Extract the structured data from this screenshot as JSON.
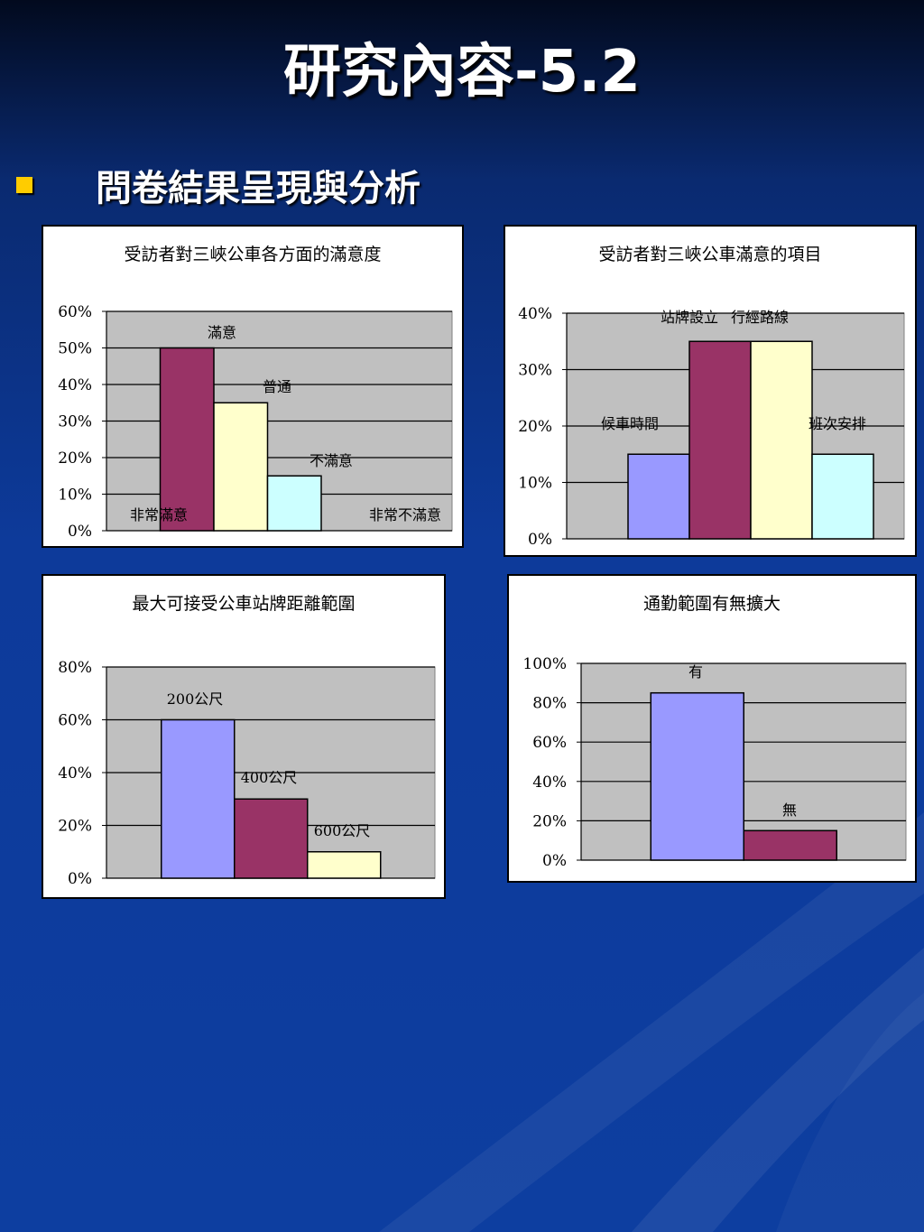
{
  "slide": {
    "title": "研究內容-5.2",
    "bullet": "問卷結果呈現與分析"
  },
  "colors": {
    "bar_purple": "#9999ff",
    "bar_maroon": "#993366",
    "bar_cream": "#ffffcc",
    "bar_cyan": "#ccffff",
    "plot_bg": "#c0c0c0",
    "bullet": "#ffcc00"
  },
  "chart_data": [
    {
      "type": "bar",
      "title": "受訪者對三峽公車各方面的滿意度",
      "categories": [
        "非常滿意",
        "滿意",
        "普通",
        "不滿意",
        "非常不滿意"
      ],
      "values": [
        0,
        50,
        35,
        15,
        0
      ],
      "colors": [
        "#9999ff",
        "#993366",
        "#ffffcc",
        "#ccffff",
        "#9999ff"
      ],
      "unit": "%",
      "ylim": [
        0,
        60
      ],
      "yticks": [
        0,
        10,
        20,
        30,
        40,
        50,
        60
      ],
      "grid": true
    },
    {
      "type": "bar",
      "title": "受訪者對三峽公車滿意的項目",
      "categories": [
        "候車時間",
        "站牌設立",
        "行經路線",
        "班次安排"
      ],
      "values": [
        15,
        35,
        35,
        15
      ],
      "colors": [
        "#9999ff",
        "#993366",
        "#ffffcc",
        "#ccffff"
      ],
      "unit": "%",
      "ylim": [
        0,
        40
      ],
      "yticks": [
        0,
        10,
        20,
        30,
        40
      ],
      "grid": true
    },
    {
      "type": "bar",
      "title": "最大可接受公車站牌距離範圍",
      "categories": [
        "200公尺",
        "400公尺",
        "600公尺"
      ],
      "values": [
        60,
        30,
        10
      ],
      "colors": [
        "#9999ff",
        "#993366",
        "#ffffcc"
      ],
      "unit": "%",
      "ylim": [
        0,
        80
      ],
      "yticks": [
        0,
        20,
        40,
        60,
        80
      ],
      "grid": true
    },
    {
      "type": "bar",
      "title": "通勤範圍有無擴大",
      "categories": [
        "有",
        "無"
      ],
      "values": [
        85,
        15
      ],
      "colors": [
        "#9999ff",
        "#993366"
      ],
      "unit": "%",
      "ylim": [
        0,
        100
      ],
      "yticks": [
        0,
        20,
        40,
        60,
        80,
        100
      ],
      "grid": true
    }
  ]
}
